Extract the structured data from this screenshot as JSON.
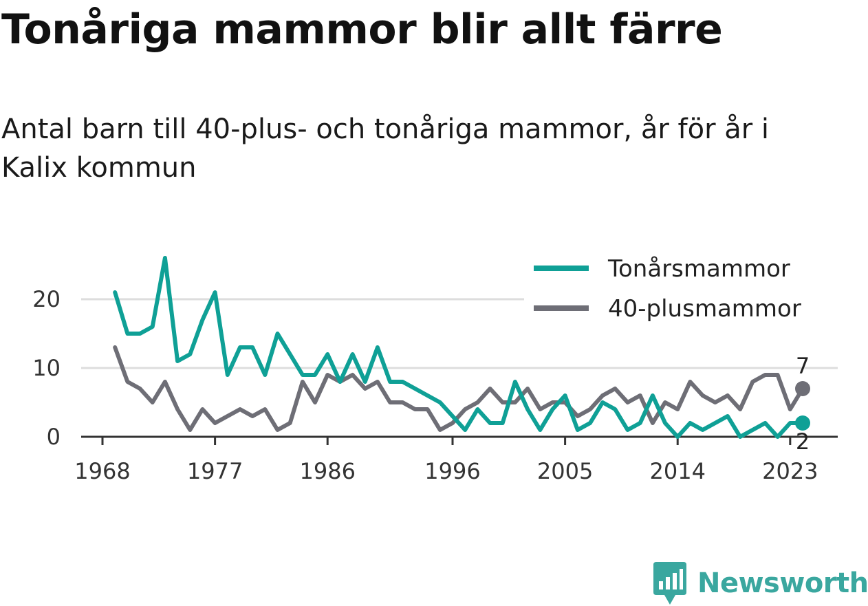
{
  "title": "Tonåriga mammor blir allt färre",
  "subtitle": "Antal barn till 40-plus- och tonåriga mammor, år för år i Kalix kommun",
  "brand": "Newsworthy",
  "colors": {
    "teen": "#0fa096",
    "plus40": "#6e6e76",
    "grid": "#dddddd",
    "axis": "#333333"
  },
  "chart_data": {
    "type": "line",
    "title": "Tonåriga mammor blir allt färre",
    "subtitle": "Antal barn till 40-plus- och tonåriga mammor, år för år i Kalix kommun",
    "xlabel": "",
    "ylabel": "",
    "xlim": [
      1968,
      2024
    ],
    "ylim": [
      0,
      26
    ],
    "x_ticks": [
      "1968",
      "1977",
      "1986",
      "1996",
      "2005",
      "2014",
      "2023"
    ],
    "y_ticks": [
      "0",
      "10",
      "20"
    ],
    "grid": "horizontal",
    "legend": "top-right",
    "x": [
      1969,
      1970,
      1971,
      1972,
      1973,
      1974,
      1975,
      1976,
      1977,
      1978,
      1979,
      1980,
      1981,
      1982,
      1983,
      1984,
      1985,
      1986,
      1987,
      1988,
      1989,
      1990,
      1991,
      1992,
      1993,
      1994,
      1995,
      1996,
      1997,
      1998,
      1999,
      2000,
      2001,
      2002,
      2003,
      2004,
      2005,
      2006,
      2007,
      2008,
      2009,
      2010,
      2011,
      2012,
      2013,
      2014,
      2015,
      2016,
      2017,
      2018,
      2019,
      2020,
      2021,
      2022,
      2023,
      2024
    ],
    "series": [
      {
        "name": "Tonårsmammor",
        "color": "#0fa096",
        "values": [
          21,
          15,
          15,
          16,
          26,
          11,
          12,
          17,
          21,
          9,
          13,
          13,
          9,
          15,
          12,
          9,
          9,
          12,
          8,
          12,
          8,
          13,
          8,
          8,
          7,
          6,
          5,
          3,
          1,
          4,
          2,
          2,
          8,
          4,
          1,
          4,
          6,
          1,
          2,
          5,
          4,
          1,
          2,
          6,
          2,
          0,
          2,
          1,
          2,
          3,
          0,
          1,
          2,
          0,
          2,
          2
        ]
      },
      {
        "name": "40-plusmammor",
        "color": "#6e6e76",
        "values": [
          13,
          8,
          7,
          5,
          8,
          4,
          1,
          4,
          2,
          3,
          4,
          3,
          4,
          1,
          2,
          8,
          5,
          9,
          8,
          9,
          7,
          8,
          5,
          5,
          4,
          4,
          1,
          2,
          4,
          5,
          7,
          5,
          5,
          7,
          4,
          5,
          5,
          3,
          4,
          6,
          7,
          5,
          6,
          2,
          5,
          4,
          8,
          6,
          5,
          6,
          4,
          8,
          9,
          9,
          4,
          7
        ]
      }
    ],
    "end_labels": {
      "Tonårsmammor": "2",
      "40-plusmammor": "7"
    }
  }
}
